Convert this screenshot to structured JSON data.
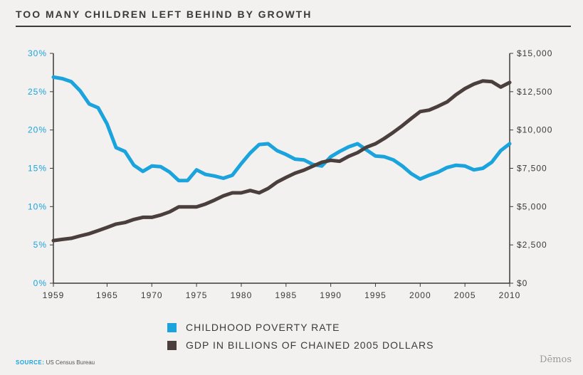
{
  "title": "TOO MANY CHILDREN LEFT BEHIND BY GROWTH",
  "source_label": "SOURCE:",
  "source_text": "US Census Bureau",
  "brand": "Dēmos",
  "colors": {
    "poverty": "#1aa3dd",
    "gdp": "#4a3f3c",
    "text": "#3a3a3a"
  },
  "chart_data": {
    "type": "line",
    "x_ticks": [
      "1959",
      "1965",
      "1970",
      "1975",
      "1980",
      "1985",
      "1990",
      "1995",
      "2000",
      "2005",
      "2010"
    ],
    "x_range": [
      1959,
      2010
    ],
    "y_left": {
      "range": [
        0,
        30
      ],
      "ticks": [
        "0%",
        "5%",
        "10%",
        "15%",
        "20%",
        "25%",
        "30%"
      ]
    },
    "y_right": {
      "range": [
        0,
        15000
      ],
      "ticks": [
        "$0",
        "$2,500",
        "$5,000",
        "$7,500",
        "$10,000",
        "$12,500",
        "$15,000"
      ]
    },
    "series": [
      {
        "name": "CHILDHOOD POVERTY RATE",
        "axis": "left",
        "x": [
          1959,
          1960,
          1961,
          1962,
          1963,
          1964,
          1965,
          1966,
          1967,
          1968,
          1969,
          1970,
          1971,
          1972,
          1973,
          1974,
          1975,
          1976,
          1977,
          1978,
          1979,
          1980,
          1981,
          1982,
          1983,
          1984,
          1985,
          1986,
          1987,
          1988,
          1989,
          1990,
          1991,
          1992,
          1993,
          1994,
          1995,
          1996,
          1997,
          1998,
          1999,
          2000,
          2001,
          2002,
          2003,
          2004,
          2005,
          2006,
          2007,
          2008,
          2009,
          2010
        ],
        "values": [
          26.9,
          26.7,
          26.3,
          25.1,
          23.4,
          22.9,
          20.8,
          17.7,
          17.2,
          15.4,
          14.6,
          15.3,
          15.2,
          14.5,
          13.4,
          13.4,
          14.8,
          14.2,
          14.0,
          13.7,
          14.1,
          15.6,
          17.0,
          18.1,
          18.2,
          17.3,
          16.8,
          16.2,
          16.1,
          15.5,
          15.3,
          16.5,
          17.2,
          17.8,
          18.2,
          17.4,
          16.6,
          16.5,
          16.1,
          15.3,
          14.3,
          13.6,
          14.1,
          14.5,
          15.1,
          15.4,
          15.3,
          14.8,
          15.0,
          15.8,
          17.3,
          18.2
        ]
      },
      {
        "name": "GDP IN BILLIONS OF CHAINED 2005 DOLLARS",
        "axis": "right",
        "x": [
          1959,
          1960,
          1961,
          1962,
          1963,
          1964,
          1965,
          1966,
          1967,
          1968,
          1969,
          1970,
          1971,
          1972,
          1973,
          1974,
          1975,
          1976,
          1977,
          1978,
          1979,
          1980,
          1981,
          1982,
          1983,
          1984,
          1985,
          1986,
          1987,
          1988,
          1989,
          1990,
          1991,
          1992,
          1993,
          1994,
          1995,
          1996,
          1997,
          1998,
          1999,
          2000,
          2001,
          2002,
          2003,
          2004,
          2005,
          2006,
          2007,
          2008,
          2009,
          2010
        ],
        "values": [
          2780,
          2860,
          2930,
          3090,
          3230,
          3430,
          3640,
          3860,
          3960,
          4160,
          4300,
          4300,
          4450,
          4660,
          4980,
          4980,
          4980,
          5170,
          5420,
          5700,
          5900,
          5900,
          6050,
          5900,
          6180,
          6600,
          6900,
          7180,
          7380,
          7640,
          7890,
          8020,
          7960,
          8280,
          8520,
          8880,
          9100,
          9450,
          9850,
          10280,
          10750,
          11200,
          11300,
          11550,
          11830,
          12300,
          12700,
          13000,
          13200,
          13150,
          12800,
          13100
        ]
      }
    ]
  }
}
